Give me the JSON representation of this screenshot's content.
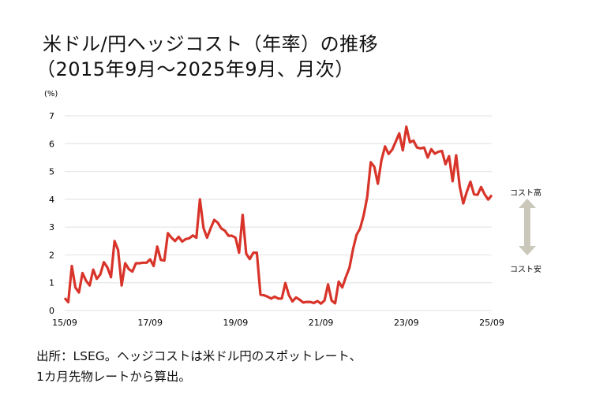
{
  "title_line1": "米ドル/円ヘッジコスト（年率）の推移",
  "title_line2": "（2015年9月〜2025年9月、月次）",
  "note_line1": "出所：LSEG。ヘッジコストは米ドル円のスポットレート、",
  "note_line2": "1カ月先物レートから算出。",
  "side_labels": {
    "high": "コスト高",
    "low": "コスト安"
  },
  "colors": {
    "line": "#d8342a",
    "grid": "#e6e6e6",
    "arrow": "#c9c8bb"
  },
  "chart_data": {
    "type": "line",
    "title": "米ドル/円ヘッジコスト（年率）の推移",
    "ylabel": "(%)",
    "xlabel": "",
    "ylim": [
      0,
      7
    ],
    "yticks": [
      "0",
      "1",
      "2",
      "3",
      "4",
      "5",
      "6",
      "7"
    ],
    "xticks": [
      "15/09",
      "17/09",
      "19/09",
      "21/09",
      "23/09",
      "25/09"
    ],
    "x_start": "2015-09",
    "x_end": "2025-09",
    "frequency": "monthly",
    "grid": true,
    "series": [
      {
        "name": "米ドル/円ヘッジコスト",
        "values": [
          0.45,
          0.3,
          1.6,
          0.83,
          0.65,
          1.35,
          1.07,
          0.9,
          1.47,
          1.14,
          1.3,
          1.74,
          1.55,
          1.2,
          2.5,
          2.18,
          0.9,
          1.7,
          1.49,
          1.4,
          1.7,
          1.7,
          1.72,
          1.72,
          1.84,
          1.6,
          2.3,
          1.82,
          1.8,
          2.78,
          2.62,
          2.5,
          2.65,
          2.48,
          2.57,
          2.6,
          2.7,
          2.62,
          4.0,
          2.97,
          2.62,
          2.95,
          3.26,
          3.16,
          2.95,
          2.87,
          2.69,
          2.69,
          2.62,
          2.08,
          3.44,
          2.05,
          1.85,
          2.08,
          2.08,
          0.57,
          0.55,
          0.5,
          0.43,
          0.5,
          0.43,
          0.43,
          0.99,
          0.55,
          0.33,
          0.47,
          0.39,
          0.29,
          0.31,
          0.31,
          0.27,
          0.34,
          0.25,
          0.36,
          0.94,
          0.36,
          0.26,
          1.04,
          0.83,
          1.21,
          1.54,
          2.2,
          2.72,
          2.95,
          3.42,
          4.08,
          5.33,
          5.17,
          4.56,
          5.4,
          5.9,
          5.63,
          5.78,
          6.07,
          6.37,
          5.76,
          6.61,
          6.05,
          6.11,
          5.86,
          5.83,
          5.86,
          5.5,
          5.8,
          5.64,
          5.71,
          5.74,
          5.26,
          5.55,
          4.65,
          5.58,
          4.46,
          3.85,
          4.27,
          4.63,
          4.18,
          4.16,
          4.44,
          4.18,
          3.99,
          4.15
        ]
      }
    ]
  }
}
